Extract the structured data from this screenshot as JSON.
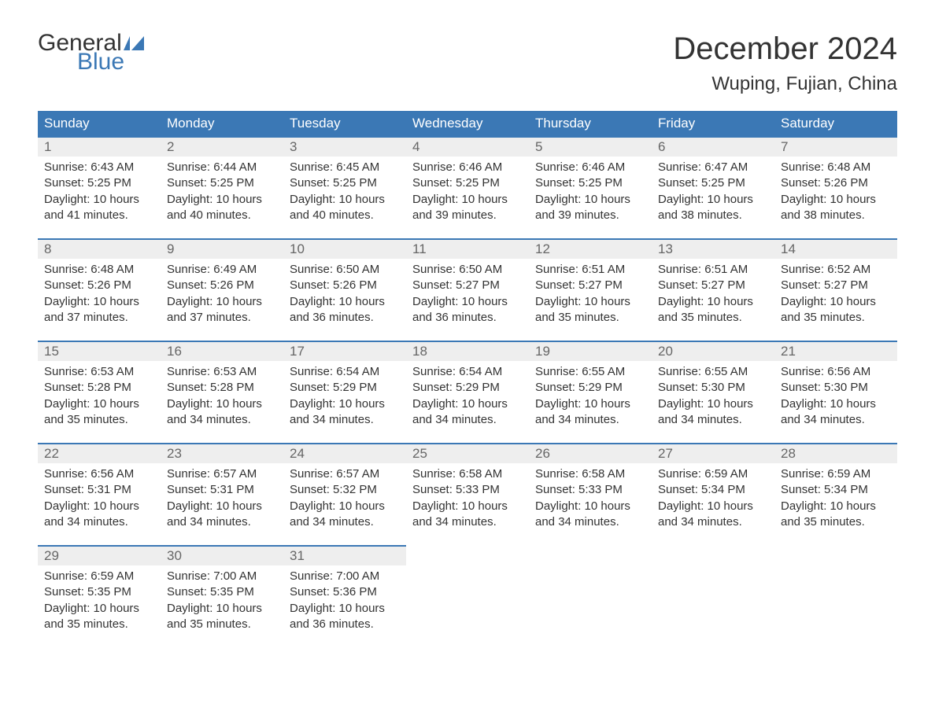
{
  "brand": {
    "part1": "General",
    "part2": "Blue"
  },
  "title": "December 2024",
  "location": "Wuping, Fujian, China",
  "colors": {
    "header_bg": "#3b78b5",
    "header_text": "#ffffff",
    "daynum_bg": "#eeeeee",
    "daynum_text": "#666666",
    "body_text": "#333333",
    "row_border": "#3b78b5",
    "background": "#ffffff",
    "logo_accent": "#3b78b5"
  },
  "fonts": {
    "family": "Arial",
    "title_size_pt": 30,
    "header_size_pt": 13,
    "body_size_pt": 11
  },
  "day_headers": [
    "Sunday",
    "Monday",
    "Tuesday",
    "Wednesday",
    "Thursday",
    "Friday",
    "Saturday"
  ],
  "weeks": [
    [
      {
        "n": "1",
        "sunrise": "Sunrise: 6:43 AM",
        "sunset": "Sunset: 5:25 PM",
        "dl1": "Daylight: 10 hours",
        "dl2": "and 41 minutes."
      },
      {
        "n": "2",
        "sunrise": "Sunrise: 6:44 AM",
        "sunset": "Sunset: 5:25 PM",
        "dl1": "Daylight: 10 hours",
        "dl2": "and 40 minutes."
      },
      {
        "n": "3",
        "sunrise": "Sunrise: 6:45 AM",
        "sunset": "Sunset: 5:25 PM",
        "dl1": "Daylight: 10 hours",
        "dl2": "and 40 minutes."
      },
      {
        "n": "4",
        "sunrise": "Sunrise: 6:46 AM",
        "sunset": "Sunset: 5:25 PM",
        "dl1": "Daylight: 10 hours",
        "dl2": "and 39 minutes."
      },
      {
        "n": "5",
        "sunrise": "Sunrise: 6:46 AM",
        "sunset": "Sunset: 5:25 PM",
        "dl1": "Daylight: 10 hours",
        "dl2": "and 39 minutes."
      },
      {
        "n": "6",
        "sunrise": "Sunrise: 6:47 AM",
        "sunset": "Sunset: 5:25 PM",
        "dl1": "Daylight: 10 hours",
        "dl2": "and 38 minutes."
      },
      {
        "n": "7",
        "sunrise": "Sunrise: 6:48 AM",
        "sunset": "Sunset: 5:26 PM",
        "dl1": "Daylight: 10 hours",
        "dl2": "and 38 minutes."
      }
    ],
    [
      {
        "n": "8",
        "sunrise": "Sunrise: 6:48 AM",
        "sunset": "Sunset: 5:26 PM",
        "dl1": "Daylight: 10 hours",
        "dl2": "and 37 minutes."
      },
      {
        "n": "9",
        "sunrise": "Sunrise: 6:49 AM",
        "sunset": "Sunset: 5:26 PM",
        "dl1": "Daylight: 10 hours",
        "dl2": "and 37 minutes."
      },
      {
        "n": "10",
        "sunrise": "Sunrise: 6:50 AM",
        "sunset": "Sunset: 5:26 PM",
        "dl1": "Daylight: 10 hours",
        "dl2": "and 36 minutes."
      },
      {
        "n": "11",
        "sunrise": "Sunrise: 6:50 AM",
        "sunset": "Sunset: 5:27 PM",
        "dl1": "Daylight: 10 hours",
        "dl2": "and 36 minutes."
      },
      {
        "n": "12",
        "sunrise": "Sunrise: 6:51 AM",
        "sunset": "Sunset: 5:27 PM",
        "dl1": "Daylight: 10 hours",
        "dl2": "and 35 minutes."
      },
      {
        "n": "13",
        "sunrise": "Sunrise: 6:51 AM",
        "sunset": "Sunset: 5:27 PM",
        "dl1": "Daylight: 10 hours",
        "dl2": "and 35 minutes."
      },
      {
        "n": "14",
        "sunrise": "Sunrise: 6:52 AM",
        "sunset": "Sunset: 5:27 PM",
        "dl1": "Daylight: 10 hours",
        "dl2": "and 35 minutes."
      }
    ],
    [
      {
        "n": "15",
        "sunrise": "Sunrise: 6:53 AM",
        "sunset": "Sunset: 5:28 PM",
        "dl1": "Daylight: 10 hours",
        "dl2": "and 35 minutes."
      },
      {
        "n": "16",
        "sunrise": "Sunrise: 6:53 AM",
        "sunset": "Sunset: 5:28 PM",
        "dl1": "Daylight: 10 hours",
        "dl2": "and 34 minutes."
      },
      {
        "n": "17",
        "sunrise": "Sunrise: 6:54 AM",
        "sunset": "Sunset: 5:29 PM",
        "dl1": "Daylight: 10 hours",
        "dl2": "and 34 minutes."
      },
      {
        "n": "18",
        "sunrise": "Sunrise: 6:54 AM",
        "sunset": "Sunset: 5:29 PM",
        "dl1": "Daylight: 10 hours",
        "dl2": "and 34 minutes."
      },
      {
        "n": "19",
        "sunrise": "Sunrise: 6:55 AM",
        "sunset": "Sunset: 5:29 PM",
        "dl1": "Daylight: 10 hours",
        "dl2": "and 34 minutes."
      },
      {
        "n": "20",
        "sunrise": "Sunrise: 6:55 AM",
        "sunset": "Sunset: 5:30 PM",
        "dl1": "Daylight: 10 hours",
        "dl2": "and 34 minutes."
      },
      {
        "n": "21",
        "sunrise": "Sunrise: 6:56 AM",
        "sunset": "Sunset: 5:30 PM",
        "dl1": "Daylight: 10 hours",
        "dl2": "and 34 minutes."
      }
    ],
    [
      {
        "n": "22",
        "sunrise": "Sunrise: 6:56 AM",
        "sunset": "Sunset: 5:31 PM",
        "dl1": "Daylight: 10 hours",
        "dl2": "and 34 minutes."
      },
      {
        "n": "23",
        "sunrise": "Sunrise: 6:57 AM",
        "sunset": "Sunset: 5:31 PM",
        "dl1": "Daylight: 10 hours",
        "dl2": "and 34 minutes."
      },
      {
        "n": "24",
        "sunrise": "Sunrise: 6:57 AM",
        "sunset": "Sunset: 5:32 PM",
        "dl1": "Daylight: 10 hours",
        "dl2": "and 34 minutes."
      },
      {
        "n": "25",
        "sunrise": "Sunrise: 6:58 AM",
        "sunset": "Sunset: 5:33 PM",
        "dl1": "Daylight: 10 hours",
        "dl2": "and 34 minutes."
      },
      {
        "n": "26",
        "sunrise": "Sunrise: 6:58 AM",
        "sunset": "Sunset: 5:33 PM",
        "dl1": "Daylight: 10 hours",
        "dl2": "and 34 minutes."
      },
      {
        "n": "27",
        "sunrise": "Sunrise: 6:59 AM",
        "sunset": "Sunset: 5:34 PM",
        "dl1": "Daylight: 10 hours",
        "dl2": "and 34 minutes."
      },
      {
        "n": "28",
        "sunrise": "Sunrise: 6:59 AM",
        "sunset": "Sunset: 5:34 PM",
        "dl1": "Daylight: 10 hours",
        "dl2": "and 35 minutes."
      }
    ],
    [
      {
        "n": "29",
        "sunrise": "Sunrise: 6:59 AM",
        "sunset": "Sunset: 5:35 PM",
        "dl1": "Daylight: 10 hours",
        "dl2": "and 35 minutes."
      },
      {
        "n": "30",
        "sunrise": "Sunrise: 7:00 AM",
        "sunset": "Sunset: 5:35 PM",
        "dl1": "Daylight: 10 hours",
        "dl2": "and 35 minutes."
      },
      {
        "n": "31",
        "sunrise": "Sunrise: 7:00 AM",
        "sunset": "Sunset: 5:36 PM",
        "dl1": "Daylight: 10 hours",
        "dl2": "and 36 minutes."
      },
      null,
      null,
      null,
      null
    ]
  ]
}
